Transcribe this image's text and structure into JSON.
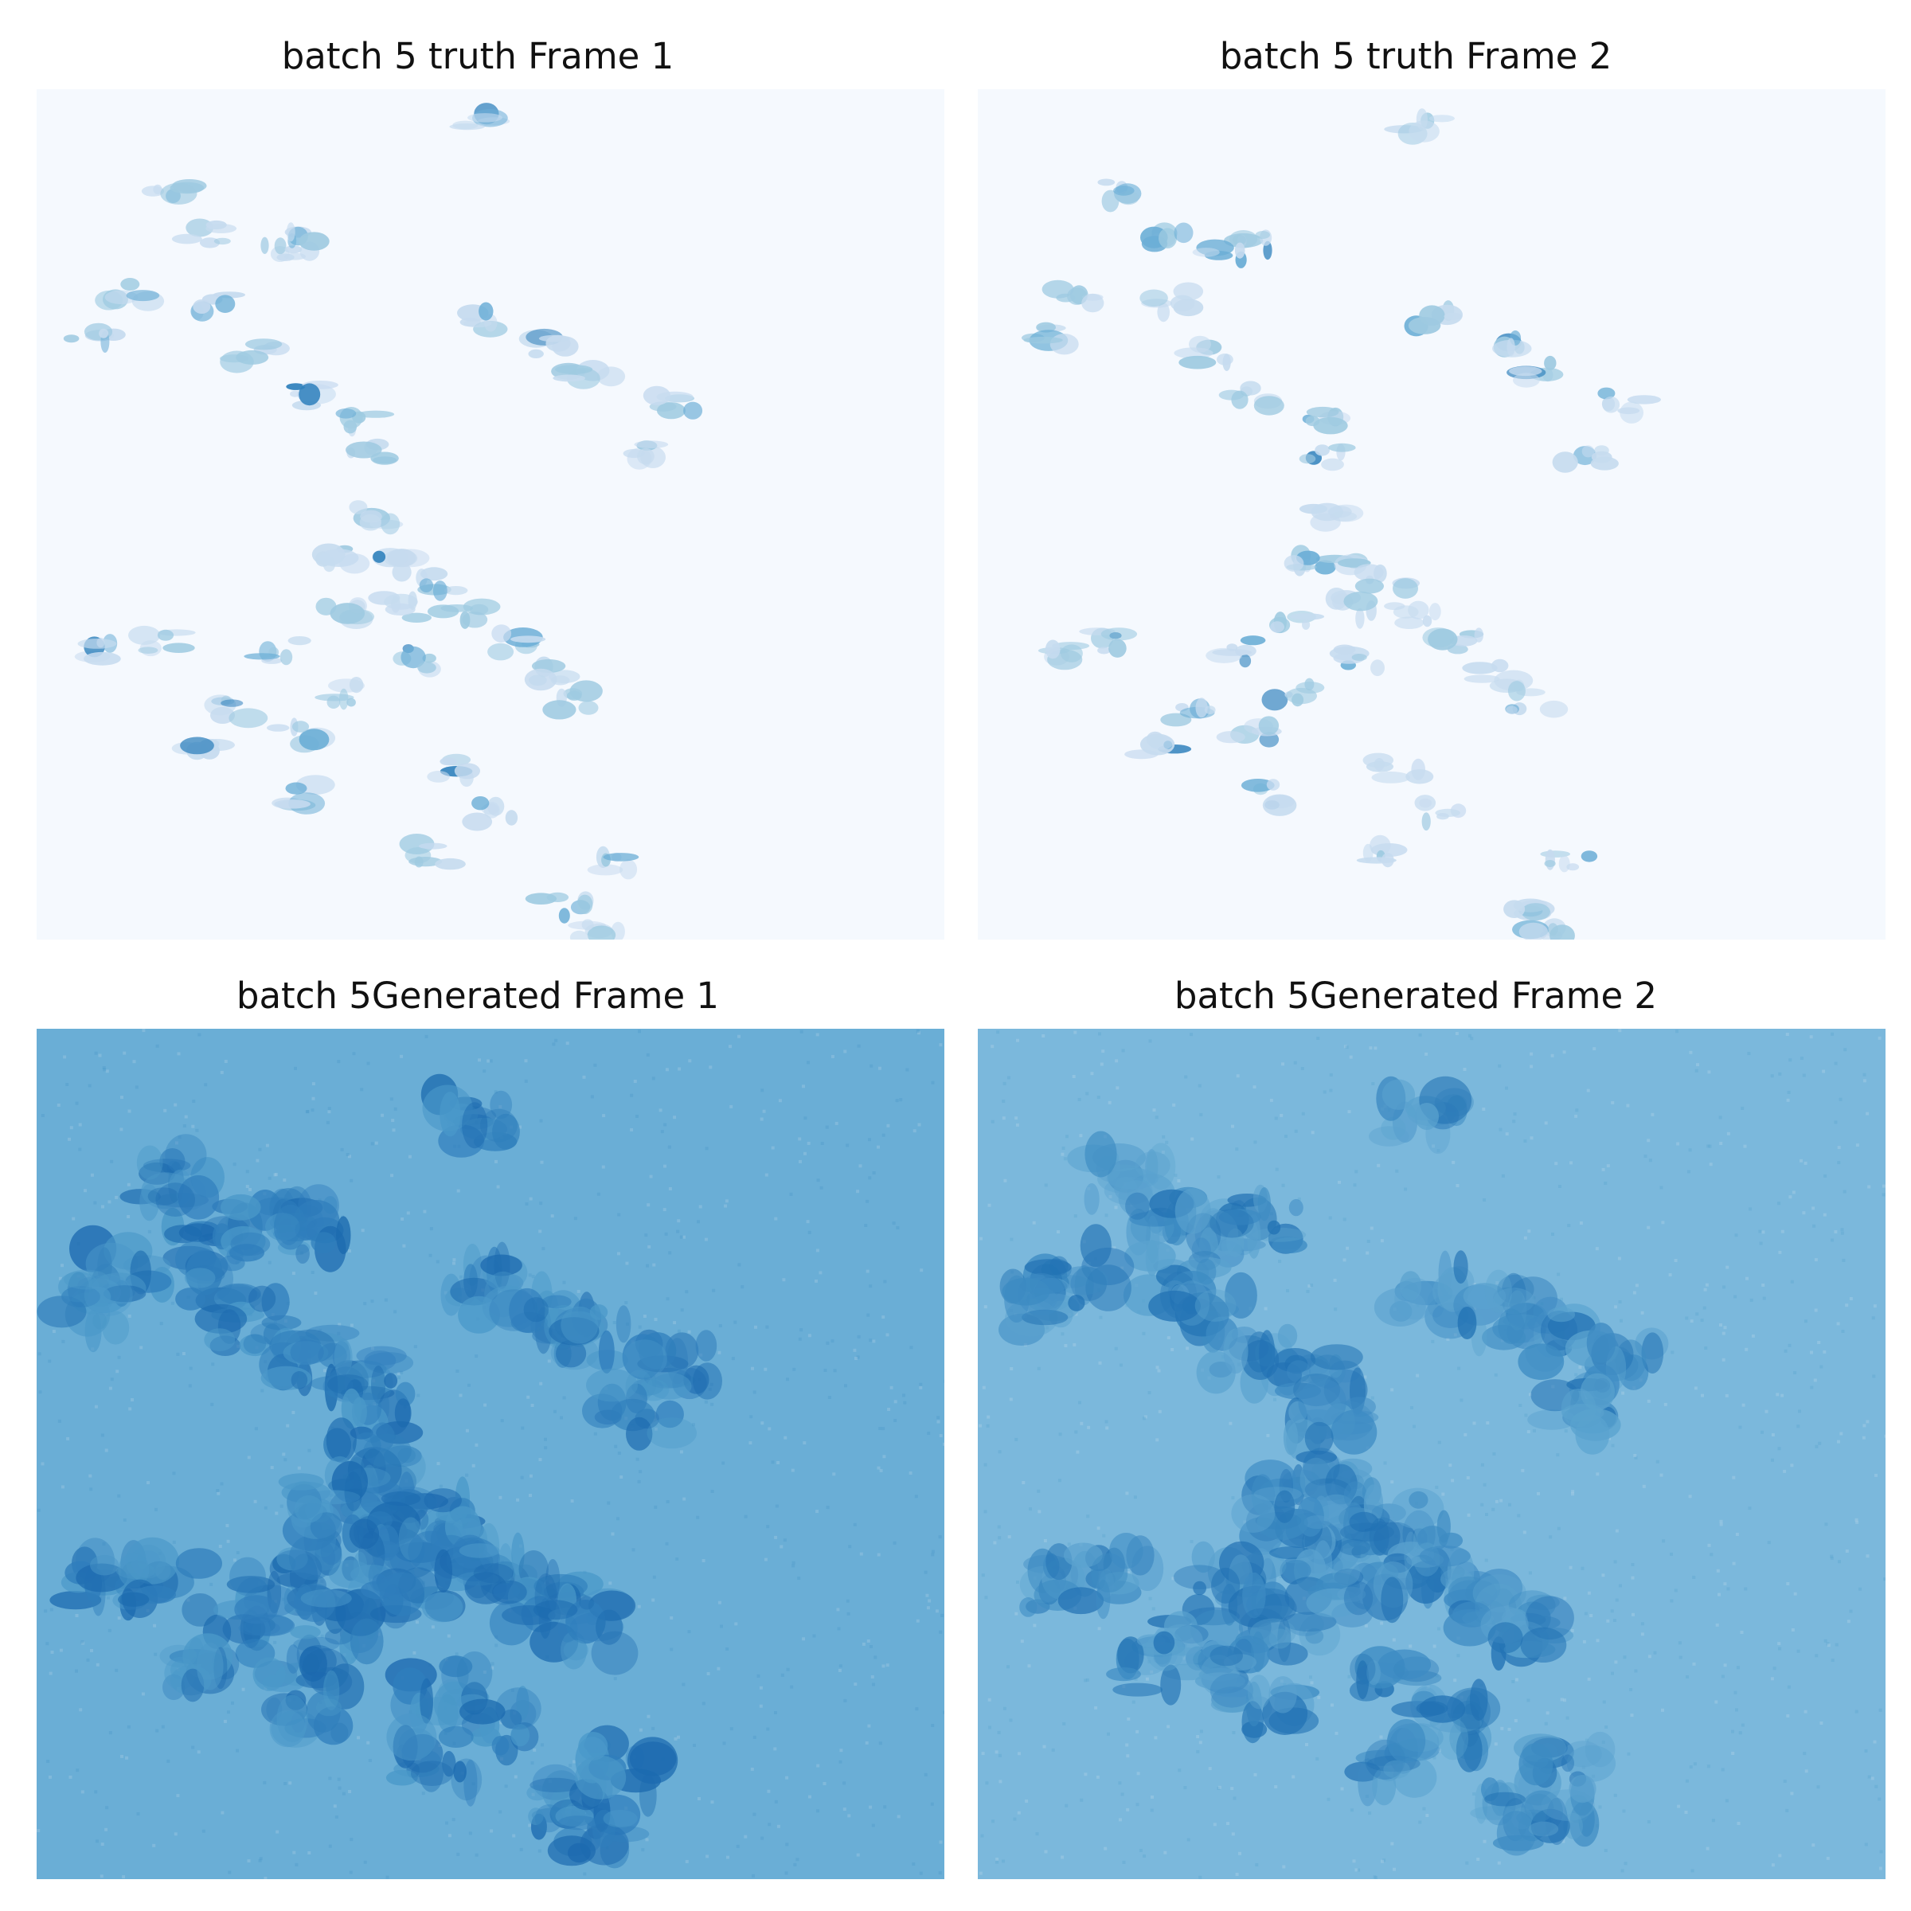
{
  "panels": [
    {
      "id": "truth-1",
      "title": "batch 5 truth Frame 1",
      "kind": "truth",
      "background": "#f5f9fe",
      "blob_colors": [
        "#c6dbef",
        "#9ecae1",
        "#6baed6",
        "#3182bd"
      ]
    },
    {
      "id": "truth-2",
      "title": "batch 5 truth Frame 2",
      "kind": "truth",
      "background": "#f5f9fe",
      "blob_colors": [
        "#c6dbef",
        "#9ecae1",
        "#6baed6",
        "#3182bd"
      ]
    },
    {
      "id": "generated-1",
      "title": "batch 5Generated Frame 1",
      "kind": "generated",
      "background": "#6aaed6",
      "blob_colors": [
        "#4a98c9",
        "#2f7ebc",
        "#1c6aaf",
        "#a9cfe5"
      ]
    },
    {
      "id": "generated-2",
      "title": "batch 5Generated Frame 2",
      "kind": "generated",
      "background": "#7bb8dc",
      "blob_colors": [
        "#5aa2cf",
        "#3d8bc3",
        "#2272b4",
        "#b4d4e8"
      ]
    }
  ],
  "colormap": "Blues"
}
